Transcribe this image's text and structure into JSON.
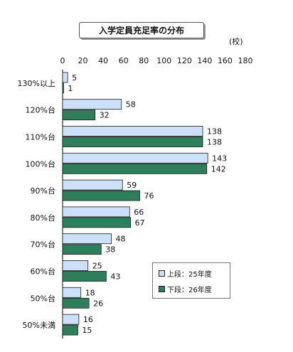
{
  "chart_data": {
    "type": "bar",
    "orientation": "horizontal",
    "title": "入学定員充足率の分布",
    "unit_label": "(校)",
    "categories": [
      "130%以上",
      "120%台",
      "110%台",
      "100%台",
      "90%台",
      "80%台",
      "70%台",
      "60%台",
      "50%台",
      "50%未満"
    ],
    "xlim": [
      0,
      180
    ],
    "xticks": [
      "0",
      "20",
      "40",
      "60",
      "80",
      "100",
      "120",
      "140",
      "160",
      "180"
    ],
    "tick_values": [
      0,
      20,
      40,
      60,
      80,
      100,
      120,
      140,
      160,
      180
    ],
    "grid": false,
    "legend_position": "bottom-right",
    "series": [
      {
        "name": "上段：25年度",
        "color": "#cce0fa",
        "values": [
          5,
          58,
          138,
          143,
          59,
          66,
          48,
          25,
          18,
          16
        ]
      },
      {
        "name": "下段：26年度",
        "color": "#2e7d5b",
        "values": [
          1,
          32,
          138,
          142,
          76,
          67,
          38,
          43,
          26,
          15
        ]
      }
    ]
  }
}
